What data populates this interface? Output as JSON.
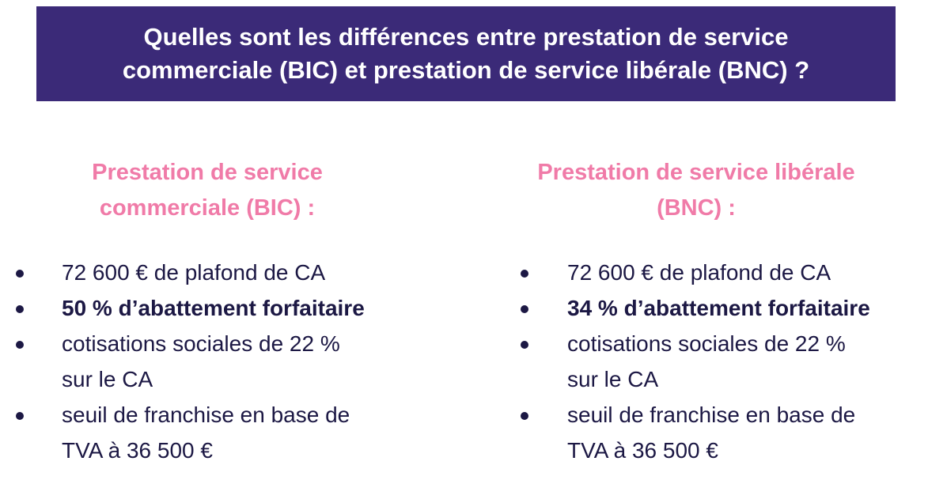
{
  "banner": {
    "title_line1": "Quelles sont les différences entre prestation de service",
    "title_line2": "commerciale (BIC) et prestation de service libérale (BNC) ?"
  },
  "colors": {
    "banner_bg": "#3b2a78",
    "heading": "#f07ba8",
    "text": "#1c1844"
  },
  "left": {
    "title_line1": "Prestation de service",
    "title_line2": "commerciale (BIC) :",
    "items": [
      {
        "text": "72 600 € de plafond de CA",
        "bold": false
      },
      {
        "text": "50 % d’abattement forfaitaire",
        "bold": true
      },
      {
        "text": "cotisations sociales de 22 %\nsur le CA",
        "bold": false
      },
      {
        "text": "seuil de franchise en base de\nTVA à 36 500 €",
        "bold": false
      }
    ]
  },
  "right": {
    "title_line1": "Prestation de service libérale",
    "title_line2": "(BNC) :",
    "items": [
      {
        "text": "72 600 € de plafond de CA",
        "bold": false
      },
      {
        "text": "34 % d’abattement forfaitaire",
        "bold": true
      },
      {
        "text": "cotisations sociales de 22 %\nsur le CA",
        "bold": false
      },
      {
        "text": "seuil de franchise en base de\nTVA à 36 500 €",
        "bold": false
      }
    ]
  }
}
